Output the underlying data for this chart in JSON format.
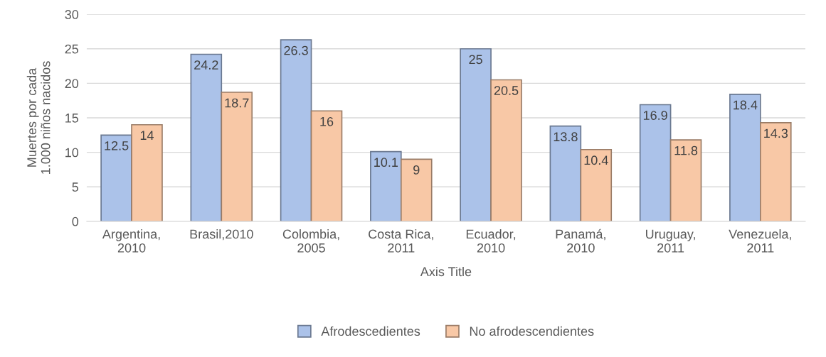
{
  "chart_data": {
    "type": "bar",
    "xlabel": "Axis Title",
    "ylabel": "Muertes por cada\n1.000 niños nacidos",
    "categories": [
      "Argentina,\n2010",
      "Brasil,2010",
      "Colombia,\n2005",
      "Costa Rica,\n2011",
      "Ecuador,\n2010",
      "Panamá,\n2010",
      "Uruguay,\n2011",
      "Venezuela,\n2011"
    ],
    "series": [
      {
        "name": "Afrodescedientes",
        "color": "#abc2e9",
        "values": [
          12.5,
          24.2,
          26.3,
          10.1,
          25,
          13.8,
          16.9,
          18.4
        ]
      },
      {
        "name": "No afrodescendientes",
        "color": "#f8c8a6",
        "values": [
          14,
          18.7,
          16,
          9,
          20.5,
          10.4,
          11.8,
          14.3
        ]
      }
    ],
    "ylim": [
      0,
      30
    ],
    "yticks": [
      0,
      5,
      10,
      15,
      20,
      25,
      30
    ],
    "grid": "y",
    "legend": "bottom",
    "data_labels": true
  }
}
